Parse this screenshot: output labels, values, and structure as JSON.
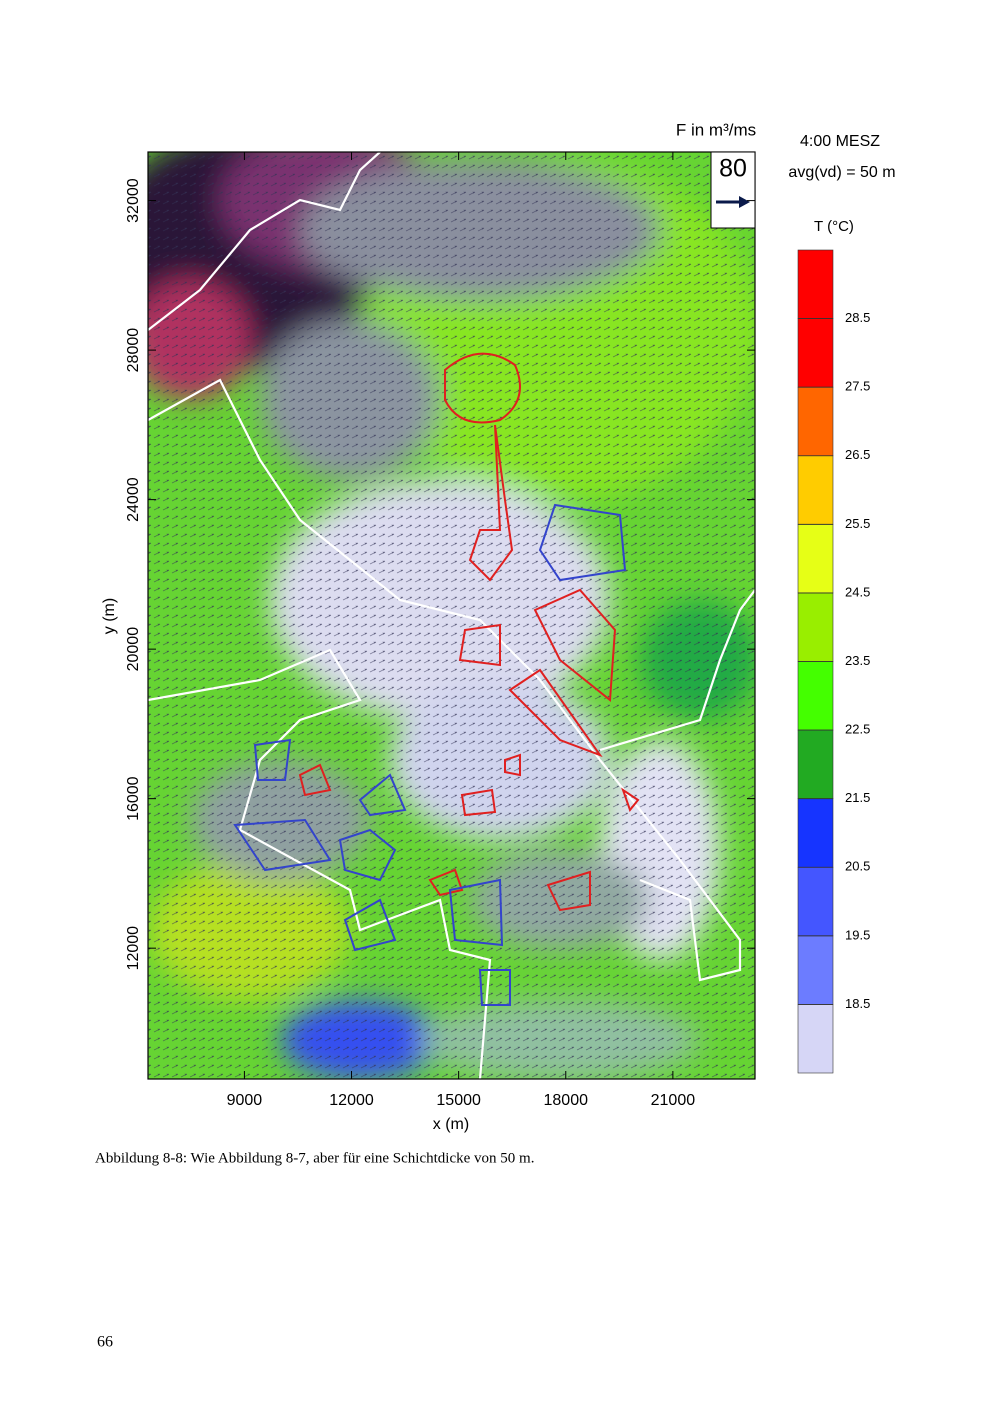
{
  "chart_data": {
    "type": "vector-field",
    "xlabel": "x (m)",
    "ylabel": "y (m)",
    "xlim": [
      6300,
      23300
    ],
    "ylim": [
      8500,
      33300
    ],
    "xticks": [
      9000,
      12000,
      15000,
      18000,
      21000
    ],
    "yticks": [
      12000,
      16000,
      20000,
      24000,
      28000,
      32000
    ],
    "annotations": [
      "4:00 MESZ",
      "avg(vd) = 50 m"
    ],
    "reference_vector": {
      "label": "F in m³/ms",
      "value": 80
    },
    "colorbar": {
      "label": "T (°C)",
      "ticks": [
        18.5,
        19.5,
        20.5,
        21.5,
        22.5,
        23.5,
        24.5,
        25.5,
        26.5,
        27.5,
        28.5
      ],
      "colors": [
        "#d6d6f6",
        "#6c7cff",
        "#4456ff",
        "#1634ff",
        "#22aa22",
        "#44ff00",
        "#99ee00",
        "#e6ff16",
        "#ffcc00",
        "#ff6600",
        "#ff0000",
        "#ff0000"
      ]
    }
  },
  "caption": "Abbildung 8-8: Wie Abbildung 8-7, aber für eine Schichtdicke von 50 m.",
  "page_number": "66"
}
